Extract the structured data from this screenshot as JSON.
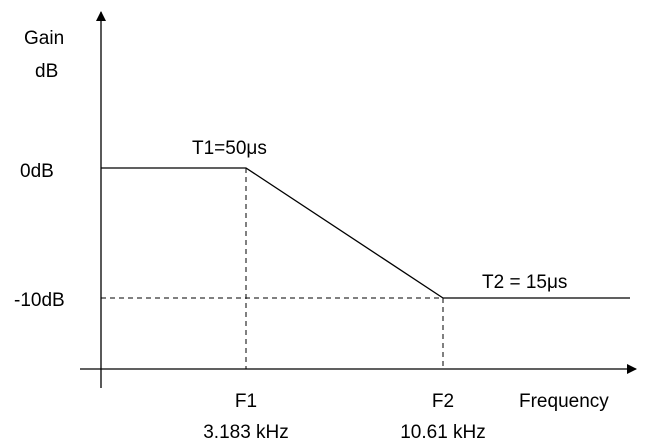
{
  "chart_data": {
    "type": "line",
    "ylabel_line1": "Gain",
    "ylabel_line2": "dB",
    "xlabel": "Frequency",
    "y_ticks": [
      {
        "label": "0dB",
        "value": 0
      },
      {
        "label": "-10dB",
        "value": -10
      }
    ],
    "x_markers": [
      {
        "name": "F1",
        "value_label": "3.183 kHz",
        "khz": 3.183
      },
      {
        "name": "F2",
        "value_label": "10.61 kHz",
        "khz": 10.61
      }
    ],
    "series": [
      {
        "points": [
          {
            "x": "start",
            "y": 0
          },
          {
            "x": "F1",
            "y": 0
          },
          {
            "x": "F2",
            "y": -10
          },
          {
            "x": "end",
            "y": -10
          }
        ]
      }
    ],
    "annotations": [
      {
        "text": "T1=50μs",
        "anchor": "F1"
      },
      {
        "text": "T2 = 15μs",
        "anchor": "F2"
      }
    ],
    "grid": false,
    "reference_lines": "dashed"
  }
}
